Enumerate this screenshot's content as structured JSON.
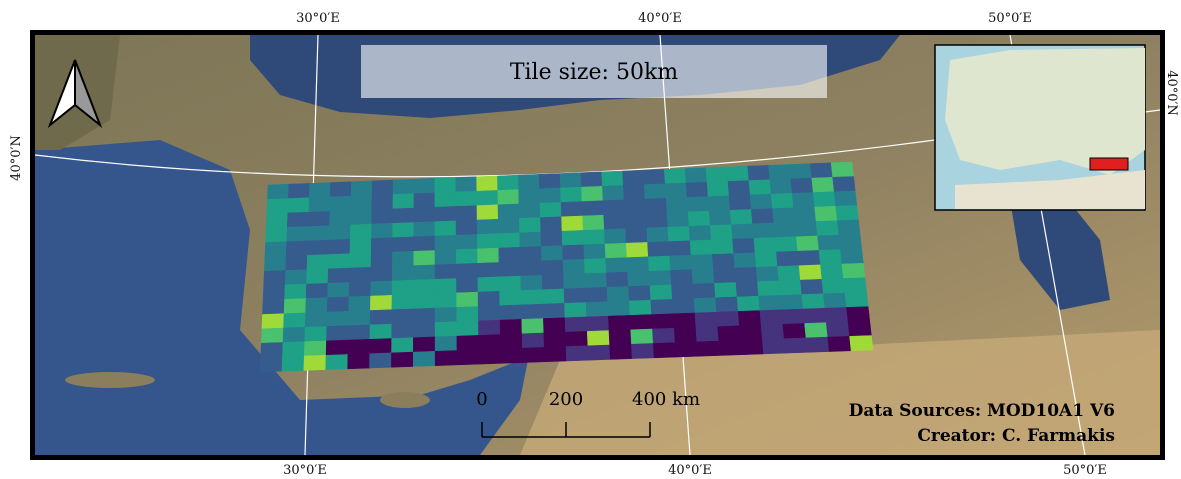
{
  "map": {
    "title": "Tile size: 50km",
    "top_labels": [
      "30°0′E",
      "40°0′E",
      "50°0′E"
    ],
    "bottom_labels": [
      "30°0′E",
      "40°0′E",
      "50°0′E"
    ],
    "left_label": "40°0′N",
    "right_label": "40°0′N",
    "scale_bar": [
      "0",
      "200",
      "400 km"
    ],
    "credits": [
      "Data Sources: MOD10A1 V6",
      "Creator:  C. Farmakis"
    ]
  }
}
